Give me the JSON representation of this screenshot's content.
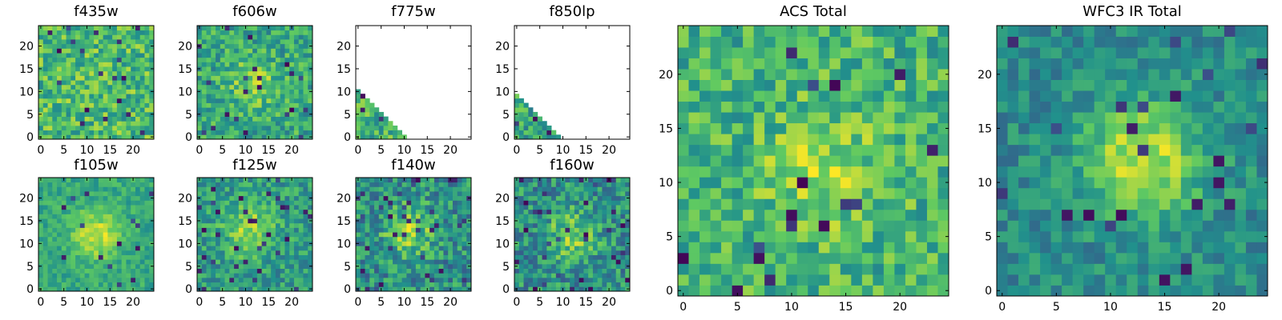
{
  "figure": {
    "colormap": "viridis",
    "colors": [
      "#440154",
      "#3b528b",
      "#21918c",
      "#5ec962",
      "#fde725"
    ]
  },
  "chart_data": [
    {
      "type": "heatmap",
      "title": "f435w",
      "grid_size": 25,
      "xlim": [
        0,
        25
      ],
      "ylim": [
        0,
        25
      ],
      "xticks": [
        0,
        5,
        10,
        15,
        20
      ],
      "yticks": [
        0,
        5,
        10,
        15,
        20
      ],
      "pattern": "noise",
      "mean": 0.68,
      "spread": 0.22,
      "lowfrac": 0.03
    },
    {
      "type": "heatmap",
      "title": "f606w",
      "grid_size": 25,
      "xlim": [
        0,
        25
      ],
      "ylim": [
        0,
        25
      ],
      "xticks": [
        0,
        5,
        10,
        15,
        20
      ],
      "yticks": [
        0,
        5,
        10,
        15,
        20
      ],
      "pattern": "blob",
      "mean": 0.6,
      "spread": 0.2,
      "lowfrac": 0.03,
      "blob_center": [
        12,
        12
      ],
      "blob_amp": 0.2
    },
    {
      "type": "heatmap",
      "title": "f775w",
      "grid_size": 25,
      "xlim": [
        0,
        25
      ],
      "ylim": [
        0,
        25
      ],
      "xticks": [
        0,
        5,
        10,
        15,
        20
      ],
      "yticks": [
        0,
        5,
        10,
        15,
        20
      ],
      "pattern": "triangle",
      "mean": 0.65,
      "spread": 0.2,
      "lowfrac": 0.03,
      "triangle_sum": 10
    },
    {
      "type": "heatmap",
      "title": "f850lp",
      "grid_size": 25,
      "xlim": [
        0,
        25
      ],
      "ylim": [
        0,
        25
      ],
      "xticks": [
        0,
        5,
        10,
        15,
        20
      ],
      "yticks": [
        0,
        5,
        10,
        15,
        20
      ],
      "pattern": "triangle",
      "mean": 0.6,
      "spread": 0.2,
      "lowfrac": 0.05,
      "triangle_sum": 9
    },
    {
      "type": "heatmap",
      "title": "f105w",
      "grid_size": 25,
      "xlim": [
        0,
        25
      ],
      "ylim": [
        0,
        25
      ],
      "xticks": [
        0,
        5,
        10,
        15,
        20
      ],
      "yticks": [
        0,
        5,
        10,
        15,
        20
      ],
      "pattern": "blob",
      "mean": 0.6,
      "spread": 0.12,
      "lowfrac": 0.02,
      "blob_center": [
        12,
        12
      ],
      "blob_amp": 0.32
    },
    {
      "type": "heatmap",
      "title": "f125w",
      "grid_size": 25,
      "xlim": [
        0,
        25
      ],
      "ylim": [
        0,
        25
      ],
      "xticks": [
        0,
        5,
        10,
        15,
        20
      ],
      "yticks": [
        0,
        5,
        10,
        15,
        20
      ],
      "pattern": "blob",
      "mean": 0.55,
      "spread": 0.18,
      "lowfrac": 0.05,
      "blob_center": [
        11,
        13
      ],
      "blob_amp": 0.3
    },
    {
      "type": "heatmap",
      "title": "f140w",
      "grid_size": 25,
      "xlim": [
        0,
        25
      ],
      "ylim": [
        0,
        25
      ],
      "xticks": [
        0,
        5,
        10,
        15,
        20
      ],
      "yticks": [
        0,
        5,
        10,
        15,
        20
      ],
      "pattern": "blob",
      "mean": 0.5,
      "spread": 0.22,
      "lowfrac": 0.06,
      "blob_center": [
        11,
        13
      ],
      "blob_amp": 0.32
    },
    {
      "type": "heatmap",
      "title": "f160w",
      "grid_size": 25,
      "xlim": [
        0,
        25
      ],
      "ylim": [
        0,
        25
      ],
      "xticks": [
        0,
        5,
        10,
        15,
        20
      ],
      "yticks": [
        0,
        5,
        10,
        15,
        20
      ],
      "pattern": "blob",
      "mean": 0.5,
      "spread": 0.22,
      "lowfrac": 0.07,
      "blob_center": [
        12,
        12
      ],
      "blob_amp": 0.3
    },
    {
      "type": "heatmap",
      "title": "ACS Total",
      "grid_size": 25,
      "xlim": [
        0,
        25
      ],
      "ylim": [
        0,
        25
      ],
      "xticks": [
        0,
        5,
        10,
        15,
        20
      ],
      "yticks": [
        0,
        5,
        10,
        15,
        20
      ],
      "pattern": "blob",
      "mean": 0.65,
      "spread": 0.2,
      "lowfrac": 0.02,
      "blob_center": [
        13,
        11
      ],
      "blob_amp": 0.2
    },
    {
      "type": "heatmap",
      "title": "WFC3 IR Total",
      "grid_size": 25,
      "xlim": [
        0,
        25
      ],
      "ylim": [
        0,
        25
      ],
      "xticks": [
        0,
        5,
        10,
        15,
        20
      ],
      "yticks": [
        0,
        5,
        10,
        15,
        20
      ],
      "pattern": "blob",
      "mean": 0.48,
      "spread": 0.14,
      "lowfrac": 0.04,
      "blob_center": [
        13,
        12
      ],
      "blob_amp": 0.45
    }
  ]
}
